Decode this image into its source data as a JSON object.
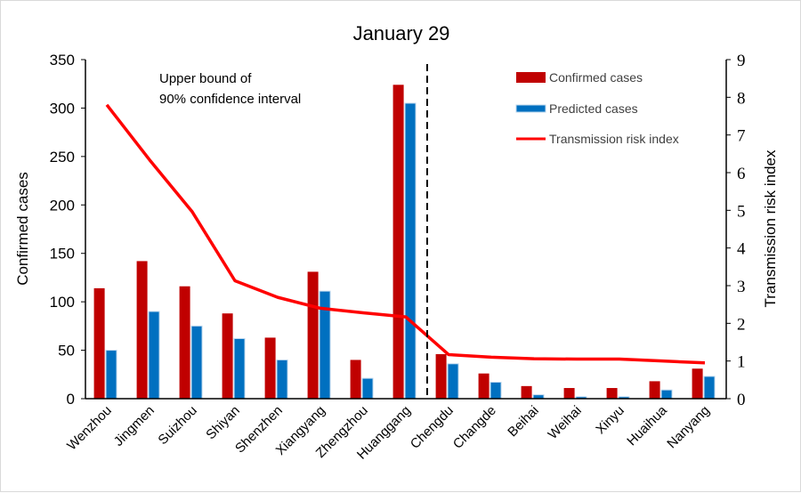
{
  "chart_data": {
    "type": "bar",
    "title": "January 29",
    "categories": [
      "Wenzhou",
      "Jingmen",
      "Suizhou",
      "Shiyan",
      "Shenzhen",
      "Xiangyang",
      "Zhengzhou",
      "Huanggang",
      "Chengdu",
      "Changde",
      "Beihai",
      "Weihai",
      "Xinyu",
      "Huaihua",
      "Nanyang"
    ],
    "series": [
      {
        "name": "Confirmed cases",
        "type": "bar",
        "axis": "left",
        "color": "#c00000",
        "values": [
          114,
          142,
          116,
          88,
          63,
          131,
          40,
          324,
          46,
          26,
          13,
          11,
          11,
          18,
          31
        ]
      },
      {
        "name": "Predicted cases",
        "type": "bar",
        "axis": "left",
        "color": "#0070c0",
        "values": [
          50,
          90,
          75,
          62,
          40,
          111,
          21,
          305,
          36,
          17,
          4,
          2,
          2,
          9,
          23
        ]
      },
      {
        "name": "Transmission risk index",
        "type": "line",
        "axis": "right",
        "color": "#ff0000",
        "values": [
          7.8,
          6.34,
          4.96,
          3.13,
          2.69,
          2.4,
          2.28,
          2.17,
          1.17,
          1.1,
          1.06,
          1.05,
          1.05,
          1.0,
          0.95
        ]
      }
    ],
    "ylabel": "Confirmed cases",
    "ylim": [
      0,
      350
    ],
    "yticks": [
      "0",
      "50",
      "100",
      "150",
      "200",
      "250",
      "300",
      "350"
    ],
    "y2label": "Transmission risk index",
    "y2lim": [
      0,
      9
    ],
    "y2ticks": [
      "0",
      "1",
      "2",
      "3",
      "4",
      "5",
      "6",
      "7",
      "8",
      "9"
    ],
    "annotation": [
      "Upper bound of",
      "90% confidence interval"
    ],
    "divider_after_category": "Huanggang",
    "legend": "top-right",
    "grid": false
  }
}
